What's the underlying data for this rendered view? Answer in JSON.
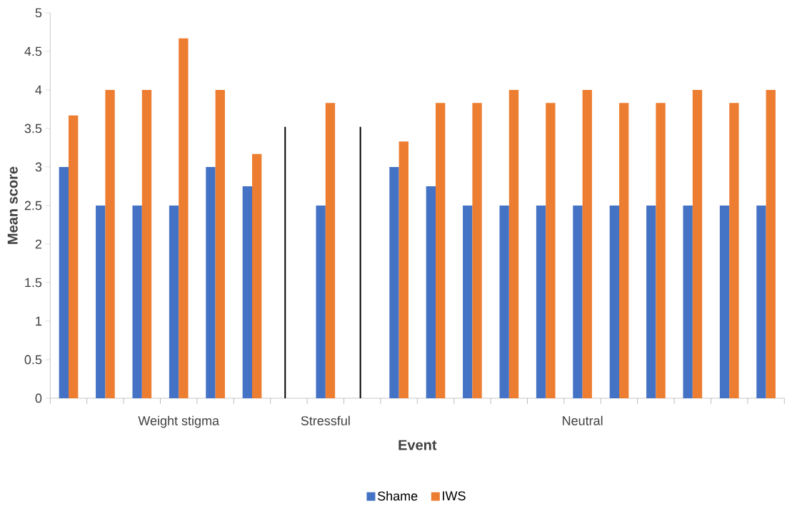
{
  "chart_data": {
    "type": "bar",
    "xlabel": "Event",
    "ylabel": "Mean score",
    "categories": [
      null,
      null,
      null,
      "Weight stigma",
      null,
      null,
      null,
      "Stressful",
      null,
      null,
      null,
      null,
      null,
      null,
      "Neutral",
      null,
      null,
      null,
      null,
      null
    ],
    "series": [
      {
        "name": "Shame",
        "color": "#4472c4",
        "values": [
          3,
          2.5,
          2.5,
          2.5,
          3,
          2.75,
          null,
          2.5,
          null,
          3,
          2.75,
          2.5,
          2.5,
          2.5,
          2.5,
          2.5,
          2.5,
          2.5,
          2.5,
          2.5
        ]
      },
      {
        "name": "IWS",
        "color": "#ed7d31",
        "values": [
          3.67,
          4,
          4,
          4.67,
          4,
          3.17,
          null,
          3.83,
          null,
          3.33,
          3.83,
          3.83,
          4,
          3.83,
          4,
          3.83,
          3.83,
          4,
          3.83,
          4
        ]
      }
    ],
    "ylim": [
      0,
      5
    ],
    "yticks": [
      0,
      0.5,
      1,
      1.5,
      2,
      2.5,
      3,
      3.5,
      4,
      4.5,
      5
    ],
    "legend": "bottom"
  }
}
